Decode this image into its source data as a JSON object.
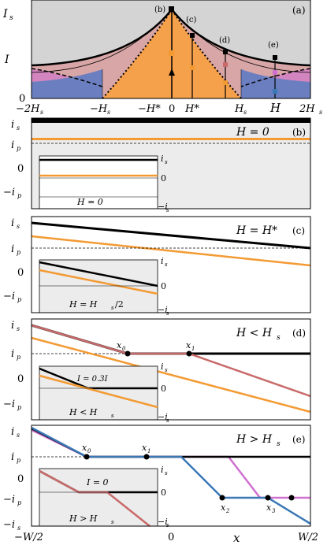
{
  "colors": {
    "orange": "#f5a04a",
    "orange_line": "#f39a33",
    "pink": "#d8a6a6",
    "magenta": "#d070d0",
    "blue": "#6b7fc0",
    "blue_line": "#3a78b5",
    "red": "#c86a6a",
    "grey": "#d4d4d4",
    "lightgrey": "#ececec"
  },
  "panel_a": {
    "tag": "(a)",
    "y_ticks": [
      "I",
      "I",
      "0"
    ],
    "y_tick_s": "s",
    "x_ticks": [
      "−2H",
      "−H",
      "−H*",
      "0",
      "H*",
      "H",
      "H",
      "2H"
    ],
    "x_tick_subs": [
      "s",
      "s",
      "",
      "",
      "",
      "s",
      "",
      "s"
    ],
    "markers": [
      "(b)",
      "(c)",
      "(d)",
      "(e)"
    ]
  },
  "panels": [
    {
      "tag": "(b)",
      "title": "H = 0",
      "inset_title": "H = 0",
      "yticks": [
        "i",
        "i",
        "0",
        "−i"
      ],
      "yticks_sub": [
        "s",
        "p",
        "",
        "p"
      ],
      "inset_ticks": [
        "i",
        "0",
        "−i"
      ],
      "inset_subs": [
        "s",
        "",
        "s"
      ]
    },
    {
      "tag": "(c)",
      "title": "H = H*",
      "inset_title": "H = H",
      "inset_sub": "s",
      "inset_extra": "/2",
      "yticks": [
        "i",
        "i",
        "0",
        "−i"
      ],
      "yticks_sub": [
        "s",
        "p",
        "",
        "p"
      ],
      "inset_ticks": [
        "i",
        "0",
        "−i"
      ],
      "inset_subs": [
        "s",
        "",
        "s"
      ]
    },
    {
      "tag": "(d)",
      "title": "H < H",
      "title_sub": "s",
      "inset_title": "H < H",
      "inset_sub": "s",
      "inset_label": "I = 0.3I",
      "inset_label_sub": "c",
      "inset_label_tail": "(0)",
      "points": [
        "x",
        "x"
      ],
      "points_sub": [
        "0",
        "1"
      ],
      "yticks": [
        "i",
        "i",
        "0",
        "−i"
      ],
      "yticks_sub": [
        "s",
        "p",
        "",
        "p"
      ],
      "inset_ticks": [
        "i",
        "0",
        "−i"
      ],
      "inset_subs": [
        "s",
        "",
        "s"
      ]
    },
    {
      "tag": "(e)",
      "title": "H > H",
      "title_sub": "s",
      "inset_title": "H > H",
      "inset_sub": "s",
      "inset_label": "I = 0",
      "points": [
        "x",
        "x",
        "x",
        "x"
      ],
      "points_sub": [
        "0",
        "1",
        "2",
        "3"
      ],
      "yticks": [
        "i",
        "i",
        "0",
        "−i",
        "−i"
      ],
      "yticks_sub": [
        "s",
        "p",
        "",
        "p",
        "s"
      ],
      "inset_ticks": [
        "i",
        "0",
        "−i"
      ],
      "inset_subs": [
        "s",
        "",
        "s"
      ]
    }
  ],
  "x_axis": {
    "left": "−W/2",
    "mid": "0",
    "right": "W/2",
    "label": "x"
  }
}
